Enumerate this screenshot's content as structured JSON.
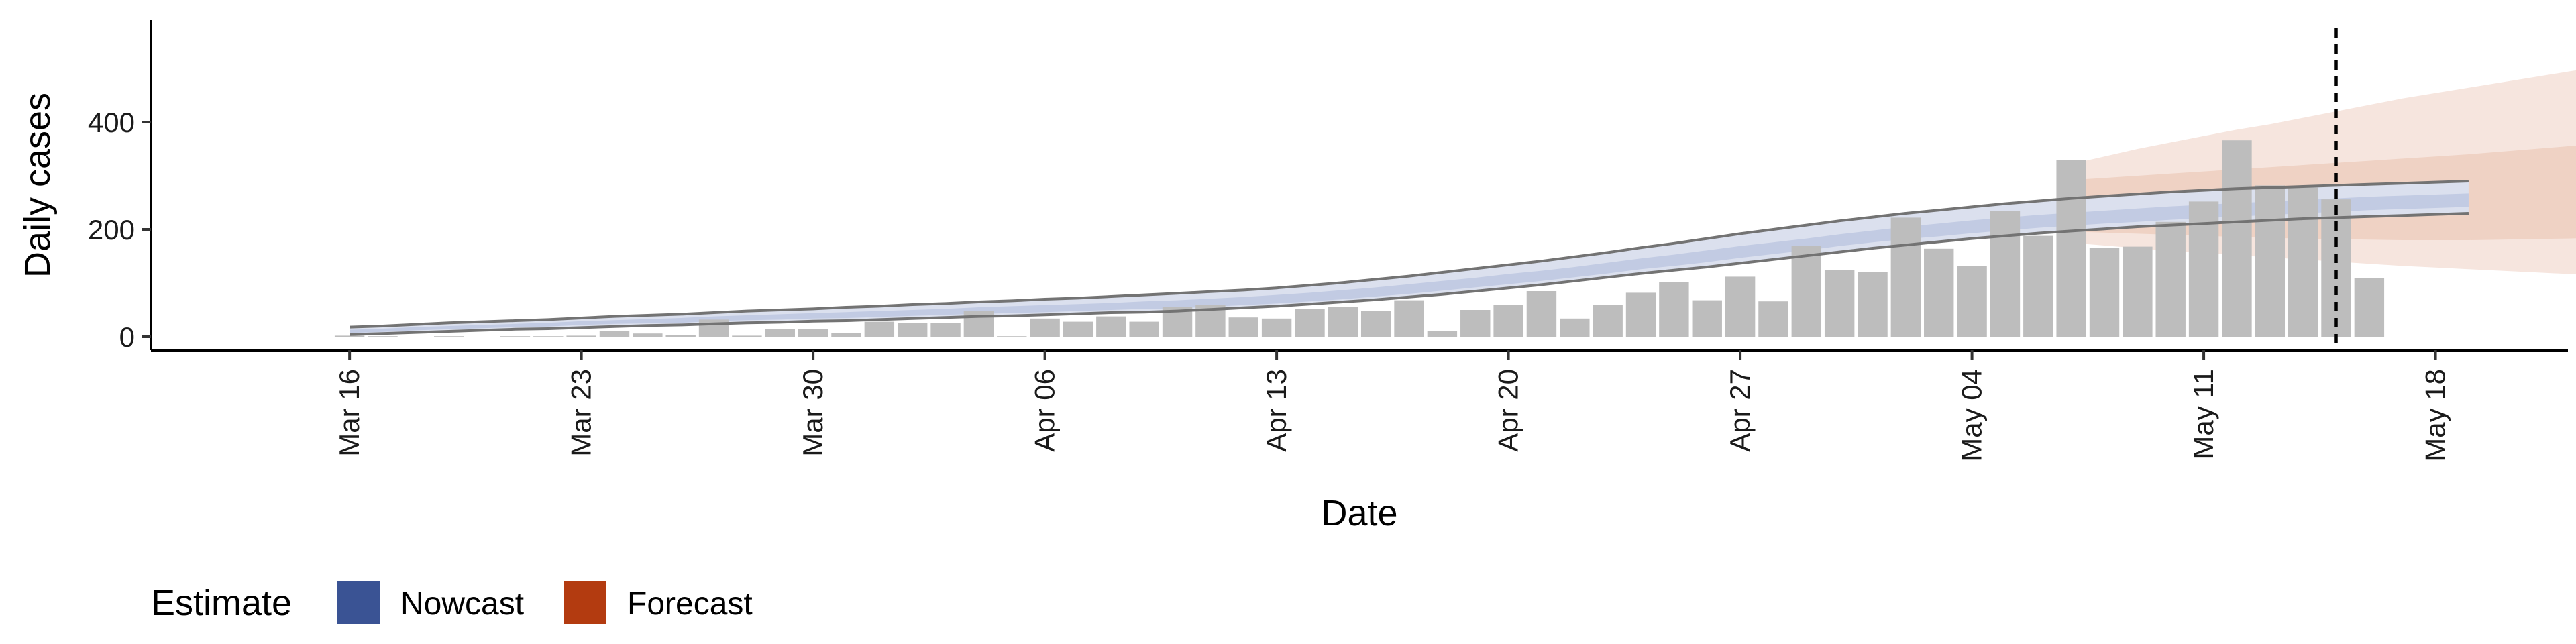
{
  "chart_data": {
    "type": "bar",
    "xlabel": "Date",
    "ylabel": "Daily cases",
    "ylim": [
      -25,
      590
    ],
    "y_ticks": [
      0,
      200,
      400
    ],
    "x_start": "2020-03-16",
    "x_range": [
      "2020-03-10",
      "2020-05-22"
    ],
    "x_ticks": [
      {
        "date": "2020-03-16",
        "label": "Mar 16"
      },
      {
        "date": "2020-03-23",
        "label": "Mar 23"
      },
      {
        "date": "2020-03-30",
        "label": "Mar 30"
      },
      {
        "date": "2020-04-06",
        "label": "Apr 06"
      },
      {
        "date": "2020-04-13",
        "label": "Apr 13"
      },
      {
        "date": "2020-04-20",
        "label": "Apr 20"
      },
      {
        "date": "2020-04-27",
        "label": "Apr 27"
      },
      {
        "date": "2020-05-04",
        "label": "May 04"
      },
      {
        "date": "2020-05-11",
        "label": "May 11"
      },
      {
        "date": "2020-05-18",
        "label": "May 18"
      }
    ],
    "reported_cases": [
      2,
      1,
      0,
      1,
      0,
      1,
      1,
      2,
      10,
      6,
      3,
      32,
      2,
      15,
      14,
      7,
      28,
      26,
      26,
      48,
      1,
      34,
      28,
      38,
      28,
      56,
      60,
      36,
      34,
      52,
      56,
      48,
      68,
      10,
      50,
      60,
      85,
      34,
      60,
      82,
      102,
      68,
      112,
      66,
      170,
      124,
      120,
      222,
      164,
      132,
      234,
      188,
      330,
      166,
      168,
      214,
      252,
      366,
      282,
      278,
      256,
      110
    ],
    "vertical_line_date": "2020-05-15",
    "nowcast": {
      "start_date": "2020-03-16",
      "median": [
        10,
        12,
        15,
        17,
        19,
        21,
        22,
        25,
        27,
        29,
        30,
        33,
        35,
        36,
        38,
        40,
        42,
        44,
        46,
        48,
        50,
        52,
        54,
        56,
        58,
        60,
        63,
        66,
        70,
        74,
        78,
        83,
        89,
        95,
        101,
        107,
        113,
        120,
        128,
        136,
        142,
        150,
        158,
        165,
        172,
        180,
        187,
        193,
        199,
        205,
        210,
        215,
        219,
        223,
        226,
        230,
        233,
        236,
        239,
        242,
        245,
        248,
        250,
        252,
        254
      ],
      "inner_upper": [
        13,
        15,
        18,
        20,
        22,
        24,
        26,
        29,
        31,
        33,
        35,
        38,
        40,
        42,
        44,
        46,
        48,
        50,
        52,
        55,
        57,
        59,
        61,
        63,
        66,
        68,
        71,
        74,
        78,
        82,
        87,
        92,
        98,
        104,
        110,
        117,
        123,
        130,
        138,
        146,
        153,
        161,
        169,
        176,
        183,
        191,
        198,
        205,
        211,
        217,
        222,
        227,
        231,
        235,
        239,
        243,
        246,
        249,
        252,
        255,
        258,
        261,
        263,
        265,
        267
      ],
      "inner_lower": [
        7,
        9,
        12,
        14,
        16,
        18,
        19,
        22,
        24,
        25,
        26,
        29,
        31,
        32,
        34,
        35,
        37,
        39,
        41,
        43,
        44,
        46,
        48,
        50,
        52,
        53,
        56,
        59,
        62,
        66,
        70,
        75,
        80,
        86,
        92,
        98,
        104,
        111,
        118,
        126,
        132,
        139,
        147,
        154,
        161,
        169,
        176,
        182,
        187,
        193,
        198,
        203,
        207,
        211,
        214,
        218,
        221,
        224,
        227,
        230,
        233,
        236,
        238,
        240,
        242
      ],
      "outer_upper": [
        18,
        20,
        23,
        26,
        28,
        30,
        32,
        35,
        38,
        40,
        42,
        45,
        48,
        50,
        52,
        55,
        57,
        60,
        62,
        65,
        67,
        70,
        72,
        75,
        78,
        81,
        84,
        87,
        91,
        96,
        101,
        107,
        113,
        120,
        127,
        134,
        141,
        149,
        157,
        166,
        174,
        183,
        192,
        200,
        208,
        216,
        223,
        230,
        236,
        242,
        248,
        253,
        258,
        262,
        266,
        270,
        273,
        276,
        278,
        280,
        282,
        284,
        286,
        288,
        290
      ],
      "outer_lower": [
        4,
        6,
        8,
        10,
        12,
        14,
        15,
        17,
        19,
        21,
        22,
        24,
        26,
        27,
        29,
        30,
        32,
        34,
        36,
        38,
        39,
        41,
        43,
        45,
        46,
        48,
        51,
        54,
        57,
        61,
        65,
        69,
        74,
        79,
        85,
        91,
        97,
        104,
        111,
        118,
        124,
        130,
        137,
        144,
        151,
        158,
        165,
        171,
        177,
        183,
        188,
        193,
        197,
        201,
        205,
        208,
        211,
        214,
        217,
        220,
        222,
        224,
        226,
        228,
        230
      ]
    },
    "forecast": {
      "start_date": "2020-05-07",
      "dates_offset": 52,
      "inner_upper": [
        292,
        296,
        300,
        304,
        308,
        312,
        316,
        320,
        324,
        328,
        332,
        336,
        340,
        345,
        350,
        355,
        360,
        366,
        372,
        378,
        384
      ],
      "inner_lower": [
        196,
        194,
        192,
        190,
        188,
        186,
        184,
        183,
        182,
        181,
        180,
        180,
        180,
        181,
        182,
        183,
        185,
        188,
        192,
        196,
        200
      ],
      "outer_upper": [
        322,
        336,
        350,
        362,
        374,
        386,
        396,
        408,
        420,
        432,
        444,
        454,
        464,
        474,
        484,
        494,
        504,
        516,
        530,
        548,
        568
      ],
      "outer_lower": [
        175,
        170,
        165,
        160,
        156,
        152,
        148,
        144,
        140,
        136,
        132,
        129,
        126,
        123,
        120,
        117,
        114,
        111,
        109,
        110,
        114
      ]
    },
    "legend": {
      "title": "Estimate",
      "items": [
        {
          "label": "Nowcast",
          "color": "#3a5394"
        },
        {
          "label": "Forecast",
          "color": "#b33b10"
        }
      ],
      "placement": "bottom-left"
    },
    "colors": {
      "bars": "#bdbdbd",
      "nowcast_outer": "#dbe0ee",
      "nowcast_inner": "#c2cbe3",
      "nowcast_bounds": "#737373",
      "forecast_outer": "#f6e5de",
      "forecast_inner": "#efd2c4",
      "vline": "#000000",
      "axis": "#000000"
    }
  }
}
